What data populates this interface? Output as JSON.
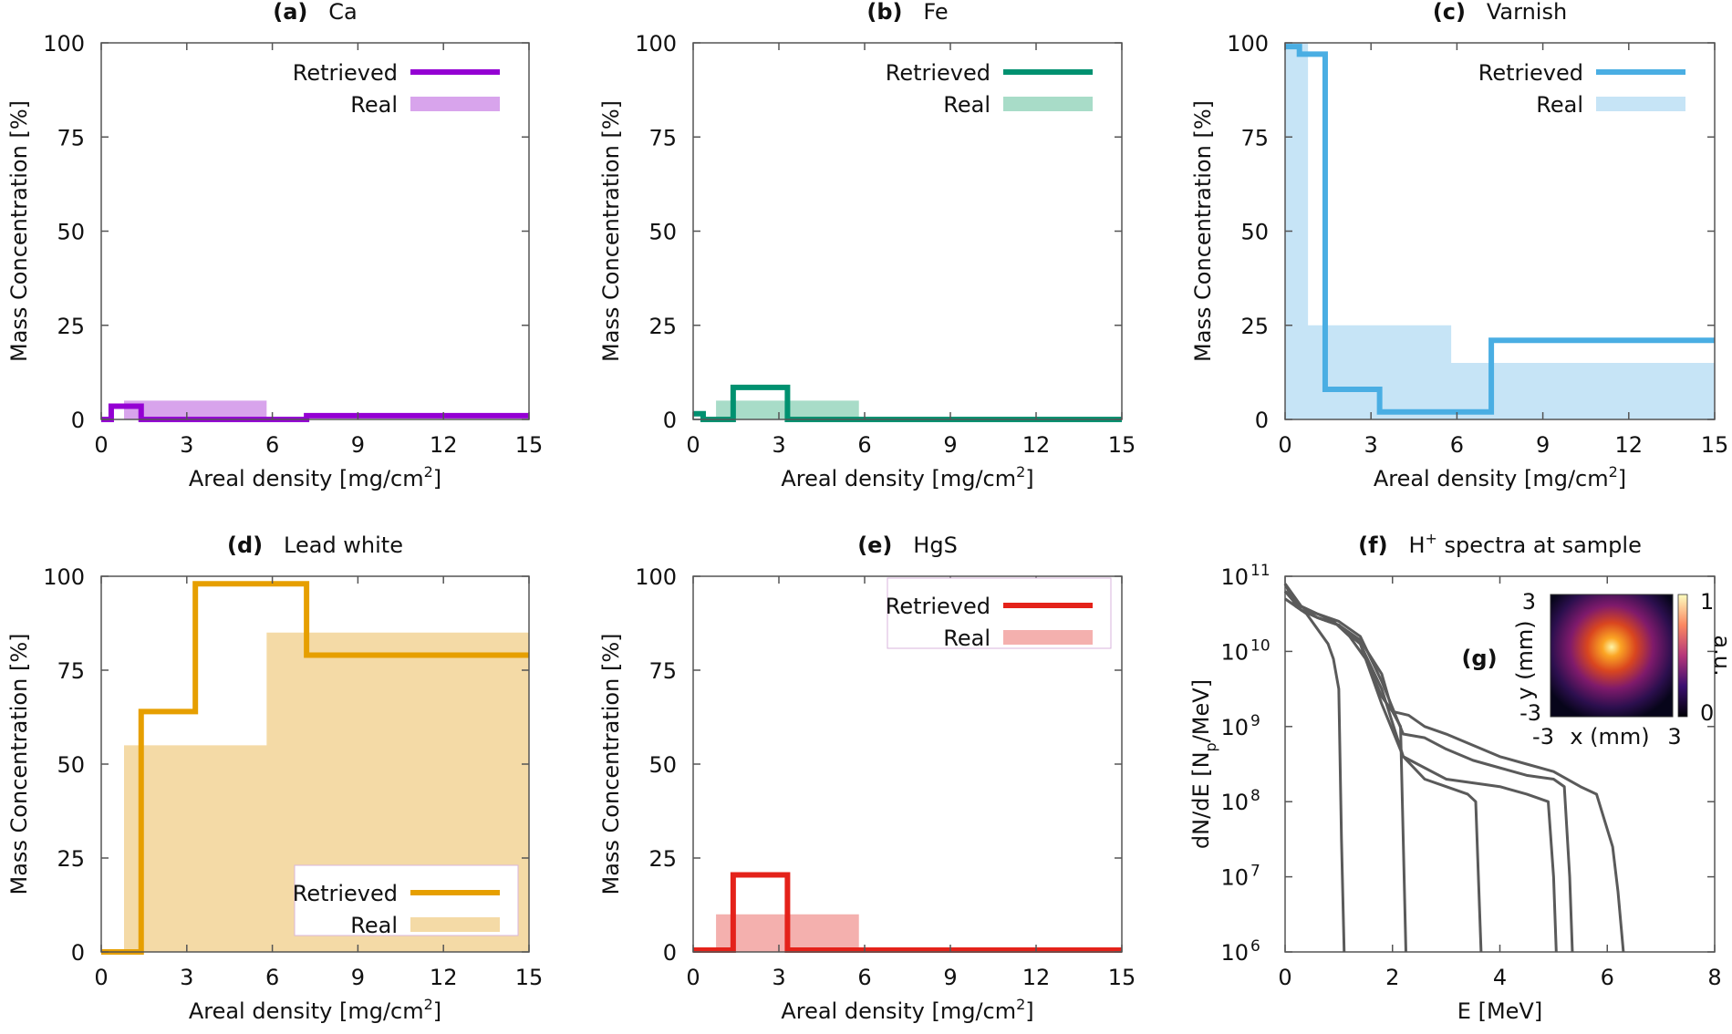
{
  "chart_data": [
    {
      "id": "a",
      "type": "step",
      "panel_letter": "(a)",
      "title": "Ca",
      "xlabel": "Areal density [mg/cm",
      "xlabel_sup": "2",
      "xlabel_end": "]",
      "ylabel": "Mass Concentration [%]",
      "xlim": [
        0,
        15
      ],
      "ylim": [
        0,
        100
      ],
      "xticks": [
        0,
        3,
        6,
        9,
        12,
        15
      ],
      "yticks": [
        0,
        25,
        50,
        75,
        100
      ],
      "color": "#9400D3",
      "fill_color": "#D8A4EC",
      "legend": {
        "retrieved": "Retrieved",
        "real": "Real",
        "position": "top-right",
        "framed": false
      },
      "real": {
        "x": [
          0,
          0.8,
          0.8,
          5.8,
          5.8,
          15
        ],
        "y": [
          0,
          0,
          5,
          5,
          0,
          0
        ]
      },
      "retrieved": {
        "x": [
          0,
          0.35,
          0.35,
          1.4,
          1.4,
          7.2,
          7.2,
          15
        ],
        "y": [
          0,
          0,
          3.5,
          3.5,
          0,
          0,
          1,
          1
        ]
      }
    },
    {
      "id": "b",
      "type": "step",
      "panel_letter": "(b)",
      "title": "Fe",
      "xlabel": "Areal density [mg/cm",
      "xlabel_sup": "2",
      "xlabel_end": "]",
      "ylabel": "Mass Concentration [%]",
      "xlim": [
        0,
        15
      ],
      "ylim": [
        0,
        100
      ],
      "xticks": [
        0,
        3,
        6,
        9,
        12,
        15
      ],
      "yticks": [
        0,
        25,
        50,
        75,
        100
      ],
      "color": "#009170",
      "fill_color": "#A8DCC8",
      "legend": {
        "retrieved": "Retrieved",
        "real": "Real",
        "position": "top-right",
        "framed": false
      },
      "real": {
        "x": [
          0,
          0.8,
          0.8,
          5.8,
          5.8,
          15
        ],
        "y": [
          0,
          0,
          5,
          5,
          0,
          0
        ]
      },
      "retrieved": {
        "x": [
          0,
          0.35,
          0.35,
          1.4,
          1.4,
          3.3,
          3.3,
          15
        ],
        "y": [
          1.5,
          1.5,
          0,
          0,
          8.5,
          8.5,
          0,
          0
        ]
      }
    },
    {
      "id": "c",
      "type": "step",
      "panel_letter": "(c)",
      "title": "Varnish",
      "xlabel": "Areal density [mg/cm",
      "xlabel_sup": "2",
      "xlabel_end": "]",
      "ylabel": "Mass Concentration [%]",
      "xlim": [
        0,
        15
      ],
      "ylim": [
        0,
        100
      ],
      "xticks": [
        0,
        3,
        6,
        9,
        12,
        15
      ],
      "yticks": [
        0,
        25,
        50,
        75,
        100
      ],
      "color": "#4AAEE3",
      "fill_color": "#C6E4F6",
      "legend": {
        "retrieved": "Retrieved",
        "real": "Real",
        "position": "top-right",
        "framed": false
      },
      "real": {
        "x": [
          0,
          0.8,
          0.8,
          5.8,
          5.8,
          15
        ],
        "y": [
          100,
          100,
          25,
          25,
          15,
          15
        ]
      },
      "retrieved": {
        "x": [
          0,
          0.5,
          0.5,
          1.4,
          1.4,
          3.3,
          3.3,
          7.2,
          7.2,
          15
        ],
        "y": [
          99,
          99,
          97,
          97,
          8,
          8,
          2,
          2,
          21,
          21
        ]
      }
    },
    {
      "id": "d",
      "type": "step",
      "panel_letter": "(d)",
      "title": "Lead white",
      "xlabel": "Areal density [mg/cm",
      "xlabel_sup": "2",
      "xlabel_end": "]",
      "ylabel": "Mass Concentration [%]",
      "xlim": [
        0,
        15
      ],
      "ylim": [
        0,
        100
      ],
      "xticks": [
        0,
        3,
        6,
        9,
        12,
        15
      ],
      "yticks": [
        0,
        25,
        50,
        75,
        100
      ],
      "color": "#E69F00",
      "fill_color": "#F4DAA6",
      "legend": {
        "retrieved": "Retrieved",
        "real": "Real",
        "position": "bottom-right",
        "framed": true
      },
      "real": {
        "x": [
          0,
          0.8,
          0.8,
          5.8,
          5.8,
          15
        ],
        "y": [
          0,
          0,
          55,
          55,
          85,
          85
        ]
      },
      "retrieved": {
        "x": [
          0,
          1.4,
          1.4,
          3.3,
          3.3,
          7.2,
          7.2,
          15
        ],
        "y": [
          0,
          0,
          64,
          64,
          98,
          98,
          79,
          79
        ]
      }
    },
    {
      "id": "e",
      "type": "step",
      "panel_letter": "(e)",
      "title": "HgS",
      "xlabel": "Areal density [mg/cm",
      "xlabel_sup": "2",
      "xlabel_end": "]",
      "ylabel": "Mass Concentration [%]",
      "xlim": [
        0,
        15
      ],
      "ylim": [
        0,
        100
      ],
      "xticks": [
        0,
        3,
        6,
        9,
        12,
        15
      ],
      "yticks": [
        0,
        25,
        50,
        75,
        100
      ],
      "color": "#E4221A",
      "fill_color": "#F4B0AE",
      "legend": {
        "retrieved": "Retrieved",
        "real": "Real",
        "position": "top-right",
        "framed": true
      },
      "real": {
        "x": [
          0,
          0.8,
          0.8,
          5.8,
          5.8,
          15
        ],
        "y": [
          0,
          0,
          10,
          10,
          0,
          0
        ]
      },
      "retrieved": {
        "x": [
          0,
          1.4,
          1.4,
          3.3,
          3.3,
          15
        ],
        "y": [
          0.5,
          0.5,
          20.5,
          20.5,
          0.5,
          0.5
        ]
      }
    },
    {
      "id": "f",
      "type": "line",
      "yscale": "log",
      "panel_letter": "(f)",
      "title_pre": "H",
      "title_sup": "+",
      "title_post": " spectra at sample",
      "xlabel": "E [MeV]",
      "ylabel_pre": "dN/dE [N",
      "ylabel_sub": "p",
      "ylabel_post": "/MeV]",
      "xlim": [
        0,
        8
      ],
      "ylim_exp": [
        6,
        11
      ],
      "xticks": [
        0,
        2,
        4,
        6,
        8
      ],
      "yticks_exp": [
        6,
        7,
        8,
        9,
        10,
        11
      ],
      "ytick_base": "10",
      "color": "#5A5A5A",
      "series": [
        {
          "name": "spectrum-1",
          "x": [
            0,
            0.2,
            0.4,
            0.6,
            0.8,
            0.9,
            1.0,
            1.05,
            1.1
          ],
          "log10y": [
            10.9,
            10.6,
            10.5,
            10.3,
            10.1,
            9.9,
            9.5,
            7.5,
            6.0
          ]
        },
        {
          "name": "spectrum-2",
          "x": [
            0,
            0.3,
            0.6,
            0.9,
            1.2,
            1.5,
            1.8,
            2.0,
            2.15,
            2.2,
            2.25
          ],
          "log10y": [
            10.8,
            10.6,
            10.5,
            10.4,
            10.2,
            9.9,
            9.4,
            9.2,
            9.0,
            7.5,
            6.0
          ]
        },
        {
          "name": "spectrum-3",
          "x": [
            0,
            0.3,
            0.6,
            1.0,
            1.4,
            1.8,
            2.2,
            2.6,
            3.0,
            3.4,
            3.55,
            3.6,
            3.65
          ],
          "log10y": [
            10.7,
            10.55,
            10.45,
            10.35,
            10.1,
            9.5,
            8.6,
            8.3,
            8.2,
            8.1,
            8.0,
            7.0,
            6.0
          ]
        },
        {
          "name": "spectrum-4",
          "x": [
            0,
            0.3,
            0.6,
            1.0,
            1.4,
            1.8,
            2.2,
            2.6,
            3.0,
            3.5,
            4.0,
            4.5,
            4.9,
            5.0,
            5.05
          ],
          "log10y": [
            10.8,
            10.55,
            10.45,
            10.35,
            10.1,
            9.3,
            8.6,
            8.45,
            8.3,
            8.25,
            8.2,
            8.1,
            8.0,
            7.0,
            6.0
          ]
        },
        {
          "name": "spectrum-5",
          "x": [
            0,
            0.3,
            0.6,
            1.0,
            1.4,
            1.8,
            2.2,
            2.6,
            3.0,
            3.5,
            4.0,
            4.5,
            5.0,
            5.2,
            5.3,
            5.35
          ],
          "log10y": [
            10.9,
            10.6,
            10.5,
            10.4,
            10.2,
            9.6,
            8.9,
            8.85,
            8.7,
            8.55,
            8.45,
            8.35,
            8.3,
            8.2,
            7.0,
            6.0
          ]
        },
        {
          "name": "spectrum-6",
          "x": [
            0,
            0.3,
            0.6,
            1.0,
            1.4,
            1.8,
            2.0,
            2.3,
            2.6,
            3.0,
            3.5,
            4.0,
            4.5,
            5.0,
            5.5,
            5.8,
            6.1,
            6.2,
            6.3
          ],
          "log10y": [
            10.9,
            10.6,
            10.45,
            10.35,
            10.15,
            9.7,
            9.2,
            9.15,
            9.0,
            8.9,
            8.75,
            8.6,
            8.5,
            8.4,
            8.2,
            8.1,
            7.4,
            6.8,
            6.0
          ]
        }
      ],
      "inset": {
        "panel_letter": "(g)",
        "xlabel": "x (mm)",
        "ylabel": "y (mm)",
        "xticks": [
          "-3",
          "3"
        ],
        "yticks": [
          "-3",
          "3"
        ],
        "colorbar_label": "a.u.",
        "colorbar_ticks": [
          "0",
          "1"
        ]
      }
    }
  ]
}
